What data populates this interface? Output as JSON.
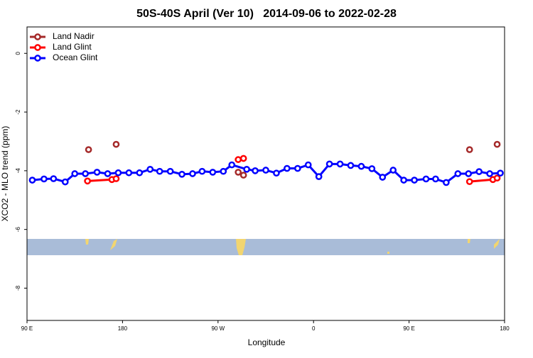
{
  "chart_data": {
    "type": "line",
    "title": "50S-40S April (Ver 10)   2014-09-06 to 2022-02-28",
    "x_label": "Longitude",
    "y_label": "XCO2 - MLO trend (ppm)",
    "xlim": [
      90,
      540
    ],
    "ylim": [
      -9.1,
      0.9
    ],
    "xticks": [
      {
        "value": 90,
        "label": "90 E"
      },
      {
        "value": 180,
        "label": "180"
      },
      {
        "value": 270,
        "label": "90 W"
      },
      {
        "value": 360,
        "label": "0"
      },
      {
        "value": 450,
        "label": "90 E"
      },
      {
        "value": 540,
        "label": "180"
      }
    ],
    "yticks": [
      0,
      -2,
      -4,
      -6,
      -8
    ],
    "legend": "top-left",
    "series": [
      {
        "name": "Land Nadir",
        "color": "#a52a2a",
        "x": [
          148,
          160,
          174,
          230,
          289,
          294,
          400,
          507,
          520,
          533
        ],
        "values": [
          -3.28,
          null,
          -3.1,
          null,
          -4.05,
          -4.15,
          null,
          -3.28,
          null,
          -3.1
        ]
      },
      {
        "name": "Land Glint",
        "color": "#ff0000",
        "x": [
          147,
          170,
          174,
          230,
          289,
          294,
          400,
          507,
          529,
          533
        ],
        "values": [
          -4.35,
          -4.3,
          -4.27,
          null,
          -3.62,
          -3.58,
          null,
          -4.37,
          -4.3,
          -4.25
        ]
      },
      {
        "name": "Ocean Glint",
        "color": "#0000ff",
        "x": [
          95,
          106,
          115,
          126,
          135,
          145,
          156,
          166,
          176,
          186,
          196,
          206,
          215,
          225,
          236,
          246,
          255,
          265,
          275,
          283,
          297,
          305,
          315,
          325,
          335,
          345,
          355,
          365,
          375,
          385,
          395,
          405,
          415,
          425,
          435,
          445,
          455,
          466,
          475,
          485,
          496,
          506,
          516,
          526,
          536
        ],
        "values": [
          -4.32,
          -4.28,
          -4.27,
          -4.38,
          -4.1,
          -4.1,
          -4.05,
          -4.1,
          -4.07,
          -4.07,
          -4.07,
          -3.95,
          -4.02,
          -4.02,
          -4.12,
          -4.1,
          -4.02,
          -4.05,
          -4.02,
          -3.8,
          -3.95,
          -4.0,
          -3.98,
          -4.08,
          -3.92,
          -3.92,
          -3.8,
          -4.2,
          -3.77,
          -3.77,
          -3.82,
          -3.85,
          -3.93,
          -4.22,
          -3.98,
          -4.32,
          -4.32,
          -4.28,
          -4.28,
          -4.4,
          -4.1,
          -4.1,
          -4.03,
          -4.1,
          -4.08
        ]
      }
    ]
  }
}
